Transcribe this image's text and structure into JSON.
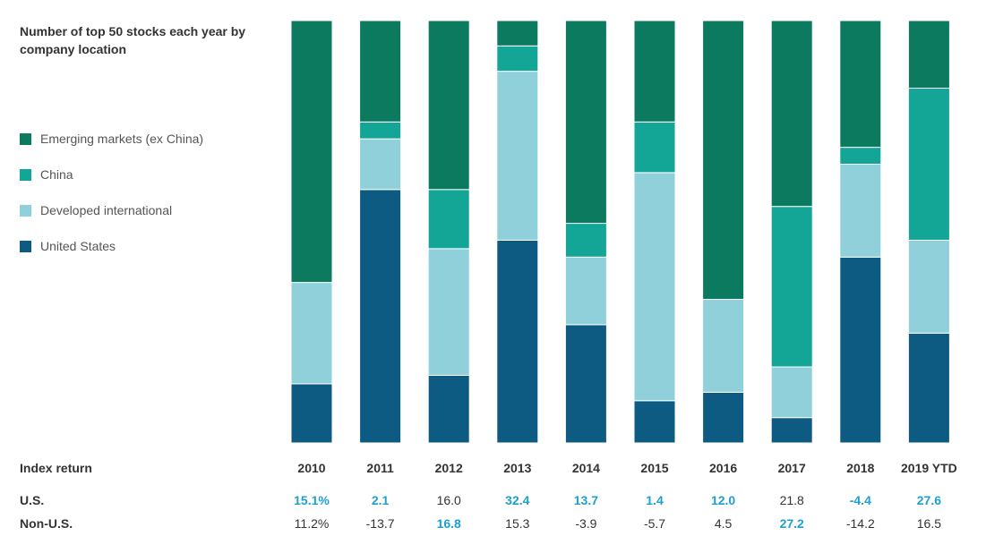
{
  "chart_data": {
    "type": "bar",
    "stacked": true,
    "title": "Number of top 50 stocks each year by company location",
    "categories": [
      "2010",
      "2011",
      "2012",
      "2013",
      "2014",
      "2015",
      "2016",
      "2017",
      "2018",
      "2019 YTD"
    ],
    "ylim": [
      0,
      50
    ],
    "legend_position": "left",
    "series": [
      {
        "name": "United States",
        "color": "#0d5b82",
        "values": [
          7,
          30,
          8,
          24,
          14,
          5,
          6,
          3,
          22,
          13
        ]
      },
      {
        "name": "Developed international",
        "color": "#8fd0db",
        "values": [
          12,
          6,
          15,
          20,
          8,
          27,
          11,
          6,
          11,
          11
        ]
      },
      {
        "name": "China",
        "color": "#13a596",
        "values": [
          0,
          2,
          7,
          3,
          4,
          6,
          0,
          19,
          2,
          18
        ]
      },
      {
        "name": "Emerging markets (ex China)",
        "color": "#0b7a5e",
        "values": [
          31,
          12,
          20,
          3,
          24,
          12,
          33,
          22,
          15,
          8
        ]
      }
    ],
    "legend_order": [
      "Emerging markets (ex China)",
      "China",
      "Developed international",
      "United States"
    ],
    "table": {
      "header_label": "Index return",
      "rows": [
        {
          "label": "U.S.",
          "values": [
            "15.1%",
            "2.1",
            "16.0",
            "32.4",
            "13.7",
            "1.4",
            "12.0",
            "21.8",
            "-4.4",
            "27.6"
          ],
          "highlight": [
            true,
            true,
            false,
            true,
            true,
            true,
            true,
            false,
            true,
            true
          ]
        },
        {
          "label": "Non-U.S.",
          "values": [
            "11.2%",
            "-13.7",
            "16.8",
            "15.3",
            "-3.9",
            "-5.7",
            "4.5",
            "27.2",
            "-14.2",
            "16.5"
          ],
          "highlight": [
            false,
            false,
            true,
            false,
            false,
            false,
            false,
            true,
            false,
            false
          ]
        }
      ]
    }
  }
}
